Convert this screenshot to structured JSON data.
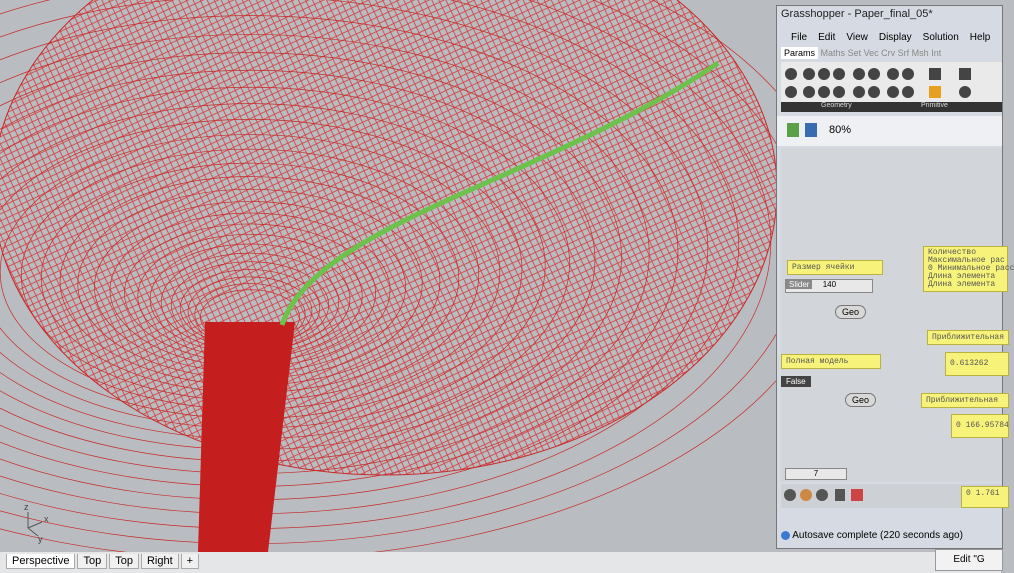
{
  "viewport": {
    "axes": [
      "z",
      "x",
      "y"
    ],
    "tabs": [
      "Perspective",
      "Top",
      "Top",
      "Right"
    ]
  },
  "grasshopper": {
    "title": "Grasshopper - Paper_final_05*",
    "menu": [
      "File",
      "Edit",
      "View",
      "Display",
      "Solution",
      "Help"
    ],
    "tabs": [
      "Params",
      "Maths",
      "Set",
      "Vec",
      "Crv",
      "Srf",
      "Msh",
      "Int"
    ],
    "groups": [
      "Geometry",
      "Primitive"
    ],
    "zoom": "80%",
    "nodes": {
      "cell_size": "Размер ячейки",
      "slider_label": "Slider",
      "slider_value": "140",
      "geo1": "Geo",
      "panel_lines": [
        "Количество",
        "Максимальное рас",
        "0 Минимальное расс",
        "Длина элемента",
        "Длина элемента"
      ],
      "approx1": "Приближительная",
      "full_model": "Полная модель",
      "toggle": "False",
      "value1": "0.613262",
      "geo2": "Geo",
      "approx2": "Приближительная",
      "value2": "0 166.95784",
      "slider2": "7",
      "value3": "0 1.761"
    },
    "status": "Autosave complete (220 seconds ago)"
  },
  "button": "Edit \"G"
}
